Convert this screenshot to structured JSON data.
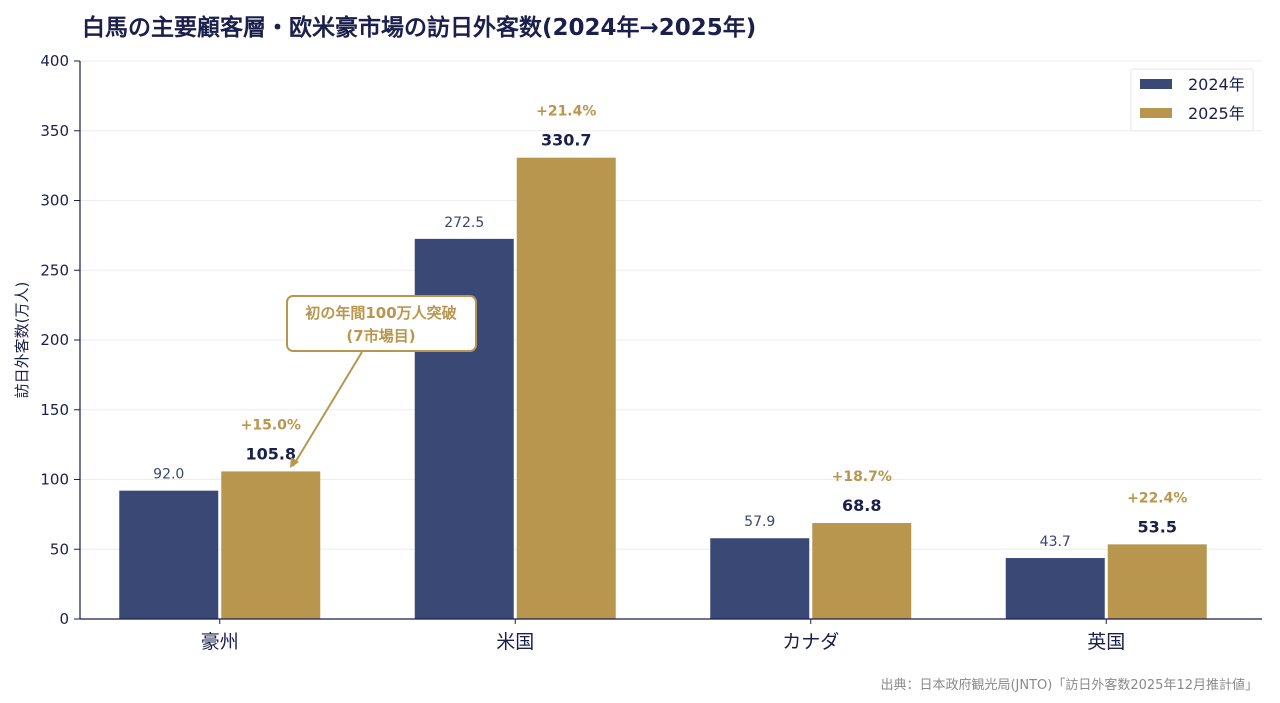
{
  "title": "白馬の主要顧客層・欧米豪市場の訪日外客数(2024年→2025年)",
  "source": "出典：日本政府観光局(JNTO)「訪日外客数2025年12月推計値」",
  "colors": {
    "y2024": "#3a4876",
    "y2025": "#b8964e",
    "text": "#1b1f4b",
    "grid": "#eeeeee"
  },
  "chart_data": {
    "type": "bar",
    "title": "白馬の主要顧客層・欧米豪市場の訪日外客数(2024年→2025年)",
    "xlabel": "",
    "ylabel": "訪日外客数(万人)",
    "ylim": [
      0,
      400
    ],
    "yticks": [
      "0",
      "50",
      "100",
      "150",
      "200",
      "250",
      "300",
      "350",
      "400"
    ],
    "grid": true,
    "legend_position": "top-right",
    "categories": [
      "豪州",
      "米国",
      "カナダ",
      "英国"
    ],
    "series": [
      {
        "name": "2024年",
        "values": [
          92.0,
          272.5,
          57.9,
          43.7
        ],
        "labels": [
          "92.0",
          "272.5",
          "57.9",
          "43.7"
        ]
      },
      {
        "name": "2025年",
        "values": [
          105.8,
          330.7,
          68.8,
          53.5
        ],
        "labels": [
          "105.8",
          "330.7",
          "68.8",
          "53.5"
        ]
      }
    ],
    "growth_labels": [
      "+15.0%",
      "+21.4%",
      "+18.7%",
      "+22.4%"
    ],
    "annotation": {
      "line1": "初の年間100万人突破",
      "line2": "(7市場目)",
      "target_category": "豪州",
      "target_series": "2025年"
    }
  }
}
